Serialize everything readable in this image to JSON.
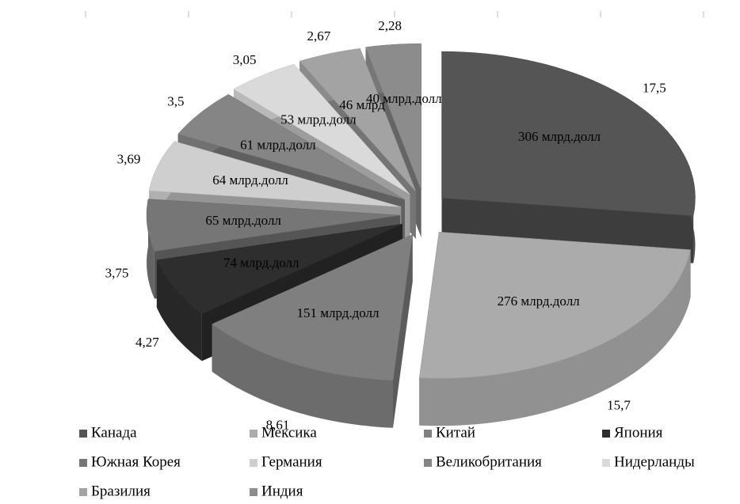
{
  "chart_data": {
    "type": "pie3d",
    "categories": [
      "Канада",
      "Мексика",
      "Китай",
      "Япония",
      "Южная Корея",
      "Германия",
      "Великобритания",
      "Нидерланды",
      "Бразилия",
      "Индия"
    ],
    "values": [
      306,
      276,
      151,
      74,
      65,
      64,
      61,
      53,
      46,
      40
    ],
    "value_labels": [
      "306 млрд.долл",
      "276 млрд.долл",
      "151 млрд.долл",
      "74 млрд.долл",
      "65 млрд.долл",
      "64 млрд.долл",
      "61 млрд.долл",
      "53 млрд.долл",
      "46 млрд",
      "40 млрд.долл"
    ],
    "shares": [
      17.5,
      15.7,
      8.61,
      4.27,
      3.75,
      3.69,
      3.5,
      3.05,
      2.67,
      2.28
    ],
    "share_labels": [
      "17,5",
      "15,7",
      "8,61",
      "4,27",
      "3,75",
      "3,69",
      "3,5",
      "3,05",
      "2,67",
      "2,28"
    ],
    "colors": [
      "#555555",
      "#ababab",
      "#7f7f7f",
      "#2e2e2e",
      "#767676",
      "#cfcfcf",
      "#858585",
      "#dadada",
      "#a3a3a3",
      "#8c8c8c"
    ],
    "legend": "bottom"
  }
}
